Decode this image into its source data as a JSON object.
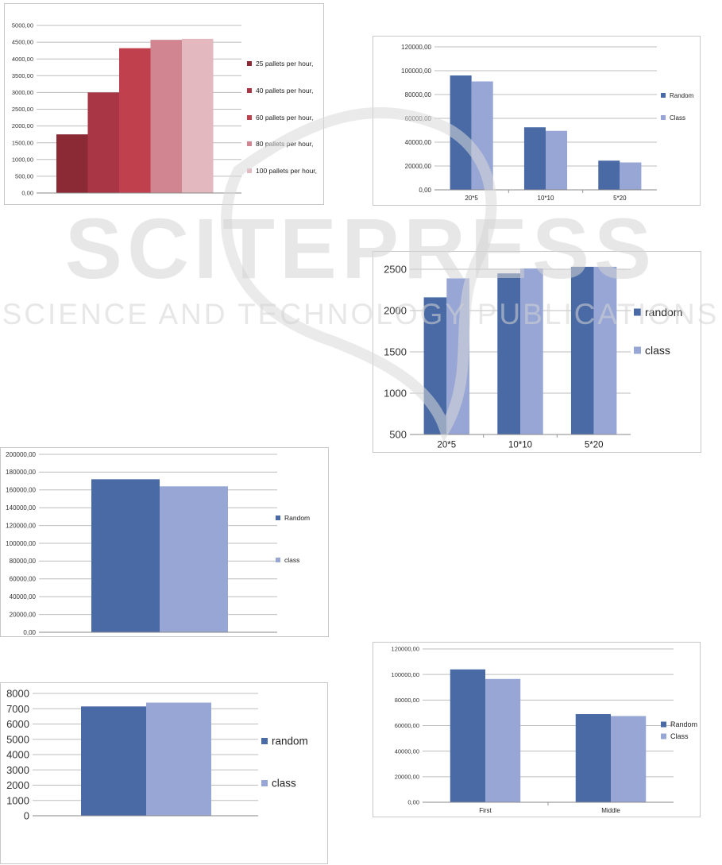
{
  "watermark": {
    "title": "SCITEPRESS",
    "subtitle": "SCIENCE AND TECHNOLOGY PUBLICATIONS"
  },
  "chart_data": [
    {
      "id": "c1",
      "type": "bar",
      "categories": [
        ""
      ],
      "series": [
        {
          "name": "25 pallets per hour,",
          "values": [
            1750
          ],
          "color": "#8b2a35"
        },
        {
          "name": "40 pallets per hour,",
          "values": [
            3000
          ],
          "color": "#a83644"
        },
        {
          "name": "60 pallets  per hour,",
          "values": [
            4320
          ],
          "color": "#c0414d"
        },
        {
          "name": "80  pallets per hour,",
          "values": [
            4570
          ],
          "color": "#d08590"
        },
        {
          "name": "100 pallets per hour,",
          "values": [
            4600
          ],
          "color": "#e4b8bf"
        }
      ],
      "ylim": [
        0,
        5000
      ],
      "yticks": [
        "0,00",
        "500,00",
        "1000,00",
        "1500,00",
        "2000,00",
        "2500,00",
        "3000,00",
        "3500,00",
        "4000,00",
        "4500,00",
        "5000,00"
      ],
      "grid": true,
      "legend": "right"
    },
    {
      "id": "c2",
      "type": "bar",
      "categories": [
        "20*5",
        "10*10",
        "5*20"
      ],
      "series": [
        {
          "name": "Random",
          "values": [
            96000,
            52500,
            24500
          ],
          "color": "#4a6aa5"
        },
        {
          "name": "Class",
          "values": [
            91000,
            49500,
            23000
          ],
          "color": "#97a6d4"
        }
      ],
      "ylim": [
        0,
        120000
      ],
      "yticks": [
        "0,00",
        "20000,00",
        "40000,00",
        "60000,00",
        "80000,00",
        "100000,00",
        "120000,00"
      ],
      "grid": true,
      "legend": "right"
    },
    {
      "id": "c3",
      "type": "bar",
      "categories": [
        "20*5",
        "10*10",
        "5*20"
      ],
      "series": [
        {
          "name": "random",
          "values": [
            2160,
            2450,
            2530
          ],
          "color": "#4a6aa5"
        },
        {
          "name": "class",
          "values": [
            2390,
            2510,
            2530
          ],
          "color": "#97a6d4"
        }
      ],
      "ylim": [
        500,
        2500
      ],
      "yticks": [
        "500",
        "1000",
        "1500",
        "2000",
        "2500"
      ],
      "grid": true,
      "legend": "right"
    },
    {
      "id": "c4",
      "type": "bar",
      "categories": [
        ""
      ],
      "series": [
        {
          "name": "Random",
          "values": [
            172000
          ],
          "color": "#4a6aa5"
        },
        {
          "name": "class",
          "values": [
            164000
          ],
          "color": "#97a6d4"
        }
      ],
      "ylim": [
        0,
        200000
      ],
      "yticks": [
        "0,00",
        "20000,00",
        "40000,00",
        "60000,00",
        "80000,00",
        "100000,00",
        "120000,00",
        "140000,00",
        "160000,00",
        "180000,00",
        "200000,00"
      ],
      "grid": true,
      "legend": "right"
    },
    {
      "id": "c5",
      "type": "bar",
      "categories": [
        ""
      ],
      "series": [
        {
          "name": "random",
          "values": [
            7150
          ],
          "color": "#4a6aa5"
        },
        {
          "name": "class",
          "values": [
            7400
          ],
          "color": "#97a6d4"
        }
      ],
      "ylim": [
        0,
        8000
      ],
      "yticks": [
        "0",
        "1000",
        "2000",
        "3000",
        "4000",
        "5000",
        "6000",
        "7000",
        "8000"
      ],
      "grid": true,
      "legend": "right"
    },
    {
      "id": "c6",
      "type": "bar",
      "categories": [
        "First",
        "Middle"
      ],
      "series": [
        {
          "name": "Random",
          "values": [
            104000,
            69000
          ],
          "color": "#4a6aa5"
        },
        {
          "name": "Class",
          "values": [
            96500,
            67500
          ],
          "color": "#97a6d4"
        }
      ],
      "ylim": [
        0,
        120000
      ],
      "yticks": [
        "0,00",
        "20000,00",
        "40000,00",
        "60000,00",
        "80000,00",
        "100000,00",
        "120000,00"
      ],
      "grid": true,
      "legend": "right"
    }
  ]
}
